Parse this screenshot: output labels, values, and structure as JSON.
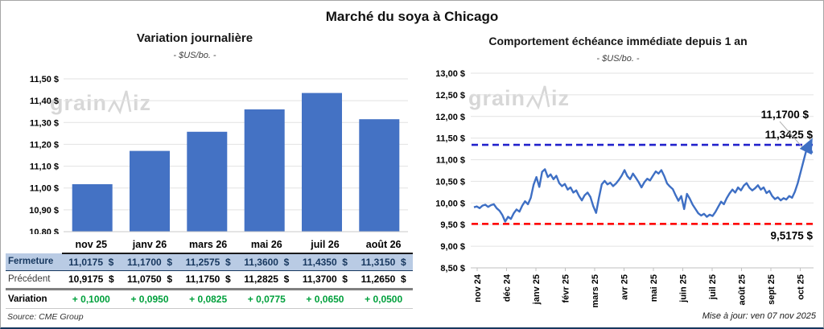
{
  "page": {
    "title": "Marché du soya à Chicago",
    "source": "Source: CME Group",
    "updated": "Mise à jour: ven 07 nov 2025",
    "watermark_prefix": "grain",
    "watermark_suffix": "iz"
  },
  "colors": {
    "bar_blue": "#4472C4",
    "line_blue": "#3E6FC4",
    "target_blue": "#2222CC",
    "support_red": "#FF0000",
    "gain_green": "#00A03C",
    "close_row_bg": "#B9CBE4",
    "close_row_text": "#17375E",
    "watermark_gray": "#D7D7D7"
  },
  "table": {
    "columns": [
      "nov 25",
      "janv 26",
      "mars 26",
      "mai 26",
      "juil 26",
      "août 26"
    ],
    "rows": [
      {
        "label": "Fermeture",
        "style": "fermeture",
        "values": [
          "11,0175  $",
          "11,1700  $",
          "11,2575  $",
          "11,3600  $",
          "11,4350  $",
          "11,3150  $"
        ]
      },
      {
        "label": "Précédent",
        "style": "precedent",
        "values": [
          "10,9175  $",
          "11,0750  $",
          "11,1750  $",
          "11,2825  $",
          "11,3700  $",
          "11,2650  $"
        ]
      },
      {
        "label": "Variation",
        "style": "variation",
        "values": [
          "+ 0,1000",
          "+ 0,0950",
          "+ 0,0825",
          "+ 0,0775",
          "+ 0,0650",
          "+ 0,0500"
        ]
      }
    ]
  },
  "chart_data": [
    {
      "type": "bar",
      "title": "Variation journalière",
      "subtitle": "- $US/bo. -",
      "categories": [
        "nov 25",
        "janv 26",
        "mars 26",
        "mai 26",
        "juil 26",
        "août 26"
      ],
      "values": [
        11.0175,
        11.17,
        11.2575,
        11.36,
        11.435,
        11.315
      ],
      "ylim": [
        10.8,
        11.5
      ],
      "ytick_step": 0.1,
      "ytick_labels": [
        "11,50 $",
        "11,40 $",
        "11,30 $",
        "11,20 $",
        "11,10 $",
        "11,00 $",
        "10,90 $",
        "10,80 $"
      ],
      "bar_color": "#4472C4",
      "grid": true,
      "legend": "none"
    },
    {
      "type": "line",
      "title": "Comportement échéance immédiate depuis 1 an",
      "subtitle": "- $US/bo. -",
      "x_tick_labels": [
        "nov 24",
        "déc 24",
        "janv 25",
        "févr 25",
        "mars 25",
        "avr 25",
        "mai 25",
        "juin 25",
        "juil 25",
        "août 25",
        "sept 25",
        "oct 25"
      ],
      "ylim": [
        8.5,
        13.0
      ],
      "ytick_step": 0.5,
      "ytick_labels": [
        "13,00 $",
        "12,50 $",
        "12,00 $",
        "11,50 $",
        "11,00 $",
        "10,50 $",
        "10,00 $",
        "9,50 $",
        "9,00 $",
        "8,50 $"
      ],
      "line_color": "#3E6FC4",
      "grid": true,
      "legend": "none",
      "values": [
        9.9,
        9.92,
        9.88,
        9.94,
        9.96,
        9.91,
        9.95,
        9.97,
        9.88,
        9.82,
        9.72,
        9.57,
        9.68,
        9.63,
        9.76,
        9.85,
        9.8,
        9.94,
        10.04,
        9.97,
        10.12,
        10.42,
        10.6,
        10.37,
        10.72,
        10.78,
        10.6,
        10.66,
        10.55,
        10.63,
        10.46,
        10.39,
        10.44,
        10.31,
        10.36,
        10.24,
        10.29,
        10.16,
        10.06,
        10.18,
        10.24,
        10.14,
        9.93,
        9.77,
        10.12,
        10.43,
        10.51,
        10.43,
        10.47,
        10.39,
        10.45,
        10.53,
        10.63,
        10.76,
        10.62,
        10.55,
        10.68,
        10.58,
        10.48,
        10.36,
        10.48,
        10.56,
        10.52,
        10.63,
        10.73,
        10.68,
        10.76,
        10.62,
        10.45,
        10.38,
        10.32,
        10.18,
        10.05,
        10.16,
        9.86,
        10.21,
        10.1,
        9.96,
        9.86,
        9.76,
        9.71,
        9.75,
        9.68,
        9.73,
        9.7,
        9.79,
        9.91,
        10.03,
        9.97,
        10.11,
        10.22,
        10.31,
        10.24,
        10.36,
        10.29,
        10.4,
        10.46,
        10.35,
        10.29,
        10.34,
        10.41,
        10.31,
        10.36,
        10.23,
        10.28,
        10.16,
        10.09,
        10.13,
        10.06,
        10.11,
        10.08,
        10.16,
        10.12,
        10.26,
        10.46,
        10.71,
        10.96,
        11.21,
        11.3425,
        11.17
      ],
      "last_value": 11.17,
      "reference_lines": [
        {
          "value": 11.3425,
          "label": "11,3425 $",
          "color": "#2222CC",
          "style": "dashed",
          "position": "above"
        },
        {
          "value": 9.5175,
          "label": "9,5175 $",
          "color": "#FF0000",
          "style": "dashed",
          "position": "below"
        }
      ],
      "annotations": [
        {
          "text": "11,1700 $",
          "color": "#000000"
        }
      ]
    }
  ]
}
